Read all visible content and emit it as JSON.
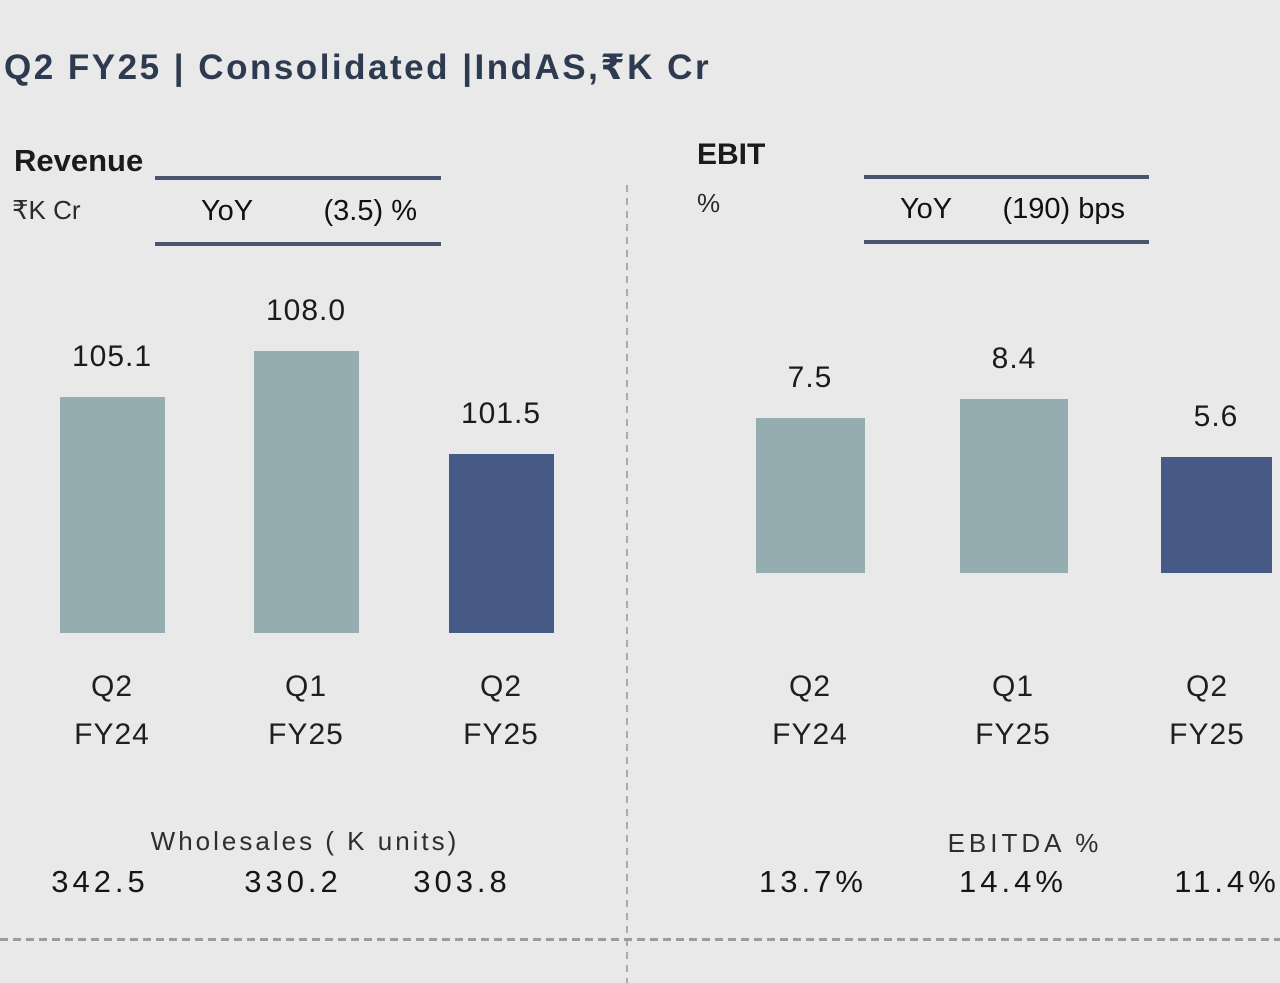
{
  "slide": {
    "title": "Q2 FY25 | Consolidated |IndAS,₹K Cr"
  },
  "colors": {
    "background": "#e9e9e9",
    "title_text": "#2d3a50",
    "bar_sage": "#95acb0",
    "bar_navy": "#475a85",
    "yoy_border": "#4a5670",
    "divider_gray": "#a6a6a6"
  },
  "chart_data": [
    {
      "type": "bar",
      "title": "Revenue",
      "unit": "₹K Cr",
      "yoy": {
        "label": "YoY",
        "value": "(3.5) %"
      },
      "categories": [
        [
          "Q2",
          "FY24"
        ],
        [
          "Q1",
          "FY25"
        ],
        [
          "Q2",
          "FY25"
        ]
      ],
      "values": [
        105.1,
        108.0,
        101.5
      ],
      "labels": [
        "105.1",
        "108.0",
        "101.5"
      ],
      "bar_colors": [
        "#95acb0",
        "#95acb0",
        "#475a85"
      ],
      "ylim": [
        90.2,
        110
      ],
      "legend": "none",
      "grid": false,
      "footer": {
        "label": "Wholesales ( K units)",
        "values": [
          "342.5",
          "330.2",
          "303.8"
        ]
      }
    },
    {
      "type": "bar",
      "title": "EBIT",
      "unit": "%",
      "yoy": {
        "label": "YoY",
        "value": "(190) bps"
      },
      "categories": [
        [
          "Q2",
          "FY24"
        ],
        [
          "Q1",
          "FY25"
        ],
        [
          "Q2",
          "FY25"
        ]
      ],
      "values": [
        7.5,
        8.4,
        5.6
      ],
      "labels": [
        "7.5",
        "8.4",
        "5.6"
      ],
      "bar_colors": [
        "#95acb0",
        "#95acb0",
        "#475a85"
      ],
      "ylim": [
        0,
        9
      ],
      "legend": "none",
      "grid": false,
      "footer": {
        "label": "EBITDA %",
        "values": [
          "13.7%",
          "14.4%",
          "11.4%"
        ]
      }
    }
  ]
}
